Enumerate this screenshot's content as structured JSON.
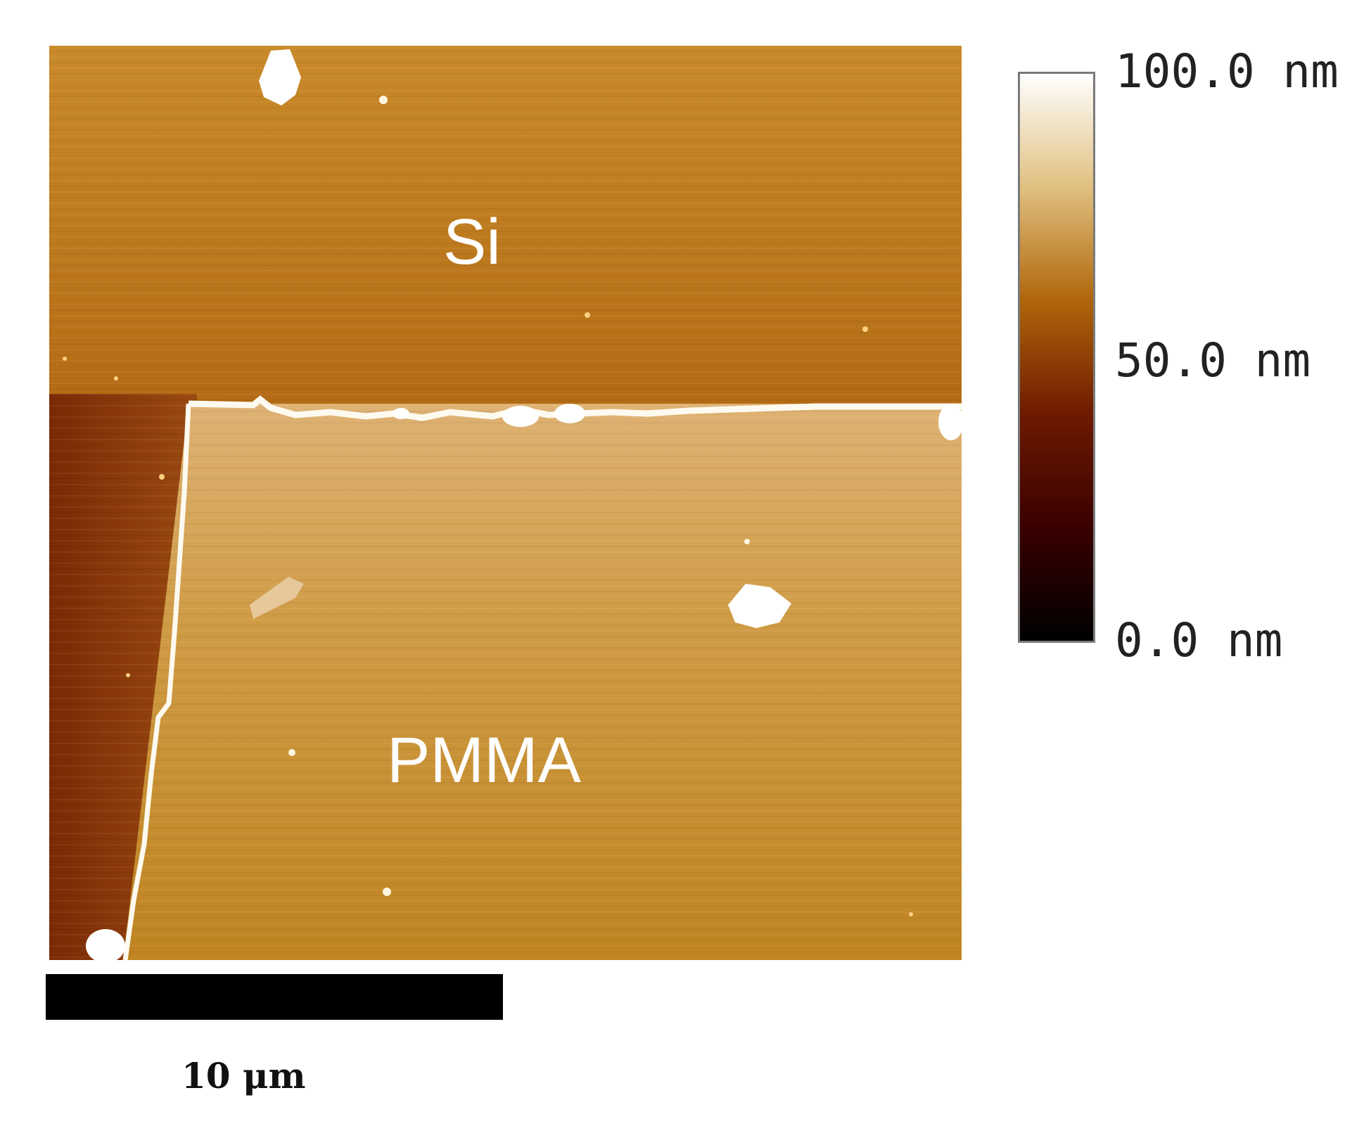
{
  "regions": {
    "si_label": "Si",
    "pmma_label": "PMMA"
  },
  "colorbar": {
    "max_label": "100.0 nm",
    "mid_label": "50.0 nm",
    "min_label": "0.0 nm",
    "colors": [
      "#000000",
      "#3a0000",
      "#6e1a00",
      "#b0660a",
      "#e0c080",
      "#ffffff"
    ]
  },
  "scale": {
    "label": "10 μm"
  },
  "image_colors": {
    "si_light": "#c07a1c",
    "si_dark": "#7a2a05",
    "pmma_light": "#d6a055",
    "pmma_mid": "#c48a2a",
    "edge": "#fffaf0"
  }
}
